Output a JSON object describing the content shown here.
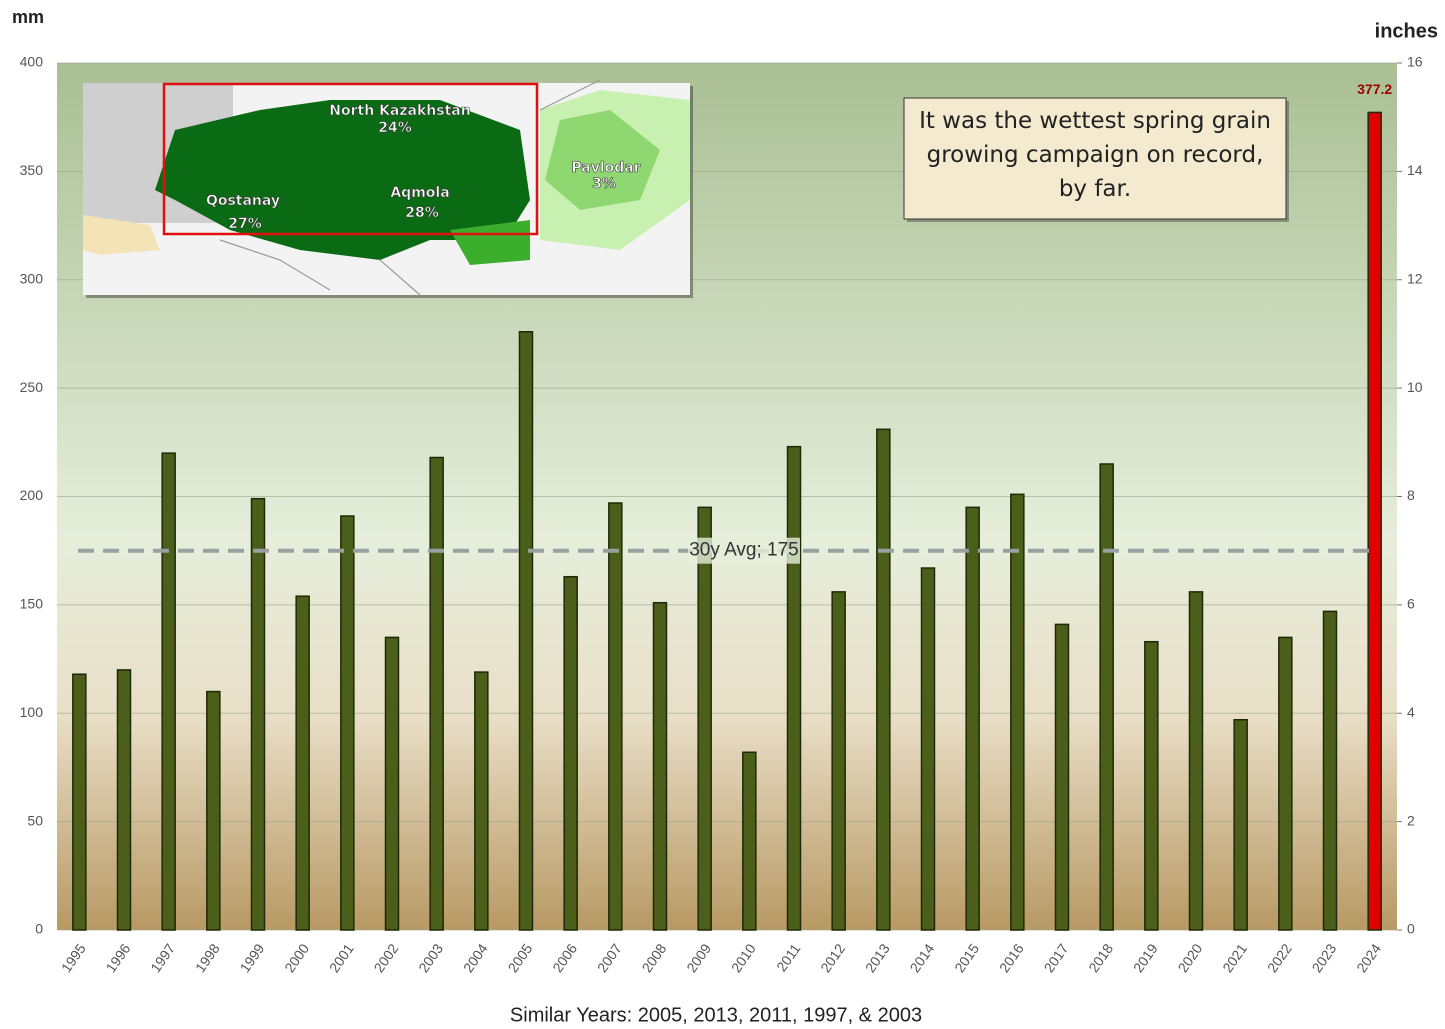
{
  "chart_data": {
    "type": "bar",
    "ylabel": "mm",
    "y2label": "inches",
    "xlabel": "Similar Years:  2005, 2013, 2011, 1997, & 2003",
    "annotation": "It was the wettest spring grain growing campaign on record, by far.",
    "categories": [
      "1995",
      "1996",
      "1997",
      "1998",
      "1999",
      "2000",
      "2001",
      "2002",
      "2003",
      "2004",
      "2005",
      "2006",
      "2007",
      "2008",
      "2009",
      "2010",
      "2011",
      "2012",
      "2013",
      "2014",
      "2015",
      "2016",
      "2017",
      "2018",
      "2019",
      "2020",
      "2021",
      "2022",
      "2023",
      "2024"
    ],
    "values": [
      118,
      120,
      220,
      110,
      199,
      154,
      191,
      135,
      218,
      119,
      276,
      163,
      197,
      151,
      195,
      82,
      223,
      156,
      231,
      167,
      195,
      201,
      141,
      215,
      133,
      156,
      97,
      135,
      147,
      377.2
    ],
    "colors": [
      "#4b5e1a",
      "#4b5e1a",
      "#4b5e1a",
      "#4b5e1a",
      "#4b5e1a",
      "#4b5e1a",
      "#4b5e1a",
      "#4b5e1a",
      "#4b5e1a",
      "#4b5e1a",
      "#4b5e1a",
      "#4b5e1a",
      "#4b5e1a",
      "#4b5e1a",
      "#4b5e1a",
      "#4b5e1a",
      "#4b5e1a",
      "#4b5e1a",
      "#4b5e1a",
      "#4b5e1a",
      "#4b5e1a",
      "#4b5e1a",
      "#4b5e1a",
      "#4b5e1a",
      "#4b5e1a",
      "#4b5e1a",
      "#4b5e1a",
      "#4b5e1a",
      "#4b5e1a",
      "#e00000"
    ],
    "labeled_bars": [
      "2024"
    ],
    "ylim": [
      0,
      400
    ],
    "yticks": [
      0,
      50,
      100,
      150,
      200,
      250,
      300,
      350,
      400
    ],
    "y2lim": [
      0,
      16
    ],
    "y2ticks": [
      0,
      2,
      4,
      6,
      8,
      10,
      12,
      14,
      16
    ],
    "grid": true,
    "average": {
      "value": 175,
      "label": "30y Avg; 175"
    },
    "inset": {
      "regions": [
        {
          "name": "North Kazakhstan",
          "share": "24%"
        },
        {
          "name": "Qostanay",
          "share": "27%"
        },
        {
          "name": "Aqmola",
          "share": "28%"
        },
        {
          "name": "Pavlodar",
          "share": "3%"
        }
      ]
    }
  }
}
